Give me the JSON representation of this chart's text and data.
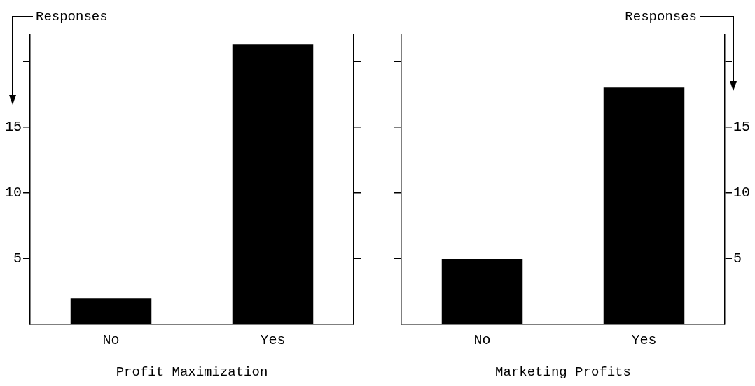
{
  "chart_data": [
    {
      "type": "bar",
      "xlabel": "Profit Maximization",
      "ylabel": "Responses",
      "categories": [
        "No",
        "Yes"
      ],
      "values": [
        2,
        21.3
      ],
      "color": "#000000",
      "ylim": [
        0,
        22
      ],
      "yticks": [
        5,
        10,
        15,
        {
          "value": 20,
          "label": null
        }
      ]
    },
    {
      "type": "bar",
      "xlabel": "Marketing Profits",
      "y2label": "Responses",
      "categories": [
        "No",
        "Yes"
      ],
      "series": [
        {
          "axis": "y2",
          "color": "#000000",
          "values": [
            5,
            18
          ]
        }
      ],
      "y2lim": [
        0,
        22
      ],
      "y2ticks": [
        5,
        10,
        15,
        {
          "value": 20,
          "label": null
        }
      ]
    }
  ]
}
